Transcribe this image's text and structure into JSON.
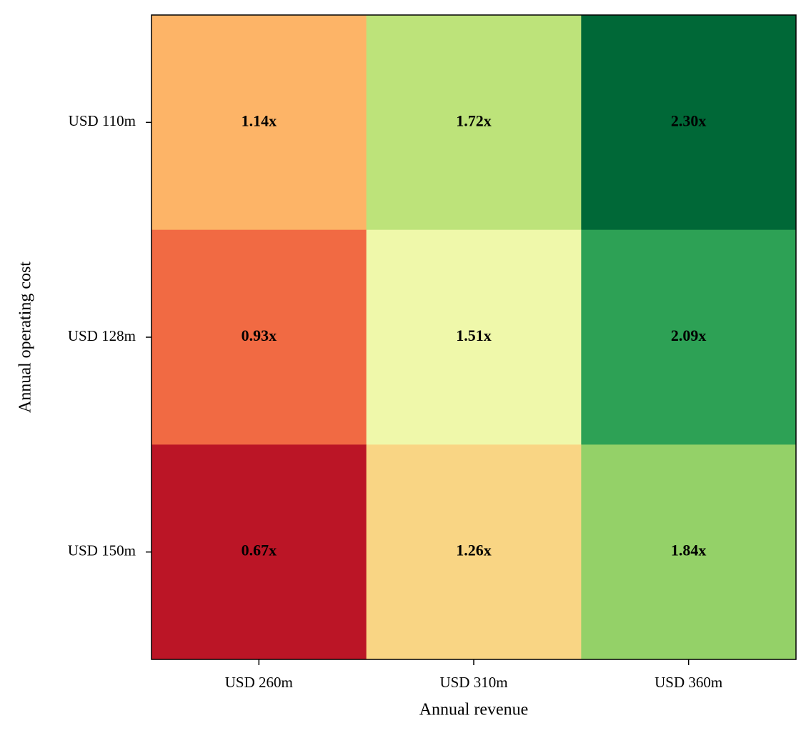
{
  "chart_data": {
    "type": "heatmap",
    "x_label": "Annual revenue",
    "y_label": "Annual operating cost",
    "x_categories": [
      "USD 260m",
      "USD 310m",
      "USD 360m"
    ],
    "y_categories": [
      "USD 110m",
      "USD 128m",
      "USD 150m"
    ],
    "values": [
      [
        1.14,
        1.72,
        2.3
      ],
      [
        0.93,
        1.51,
        2.09
      ],
      [
        0.67,
        1.26,
        1.84
      ]
    ],
    "value_labels": [
      [
        "1.14x",
        "1.72x",
        "2.30x"
      ],
      [
        "0.93x",
        "1.51x",
        "2.09x"
      ],
      [
        "0.67x",
        "1.26x",
        "1.84x"
      ]
    ],
    "colors": [
      [
        "#fdb467",
        "#bde37a",
        "#006837"
      ],
      [
        "#f16a43",
        "#eff8aa",
        "#2da155"
      ],
      [
        "#bb1526",
        "#f9d584",
        "#94d168"
      ]
    ]
  }
}
